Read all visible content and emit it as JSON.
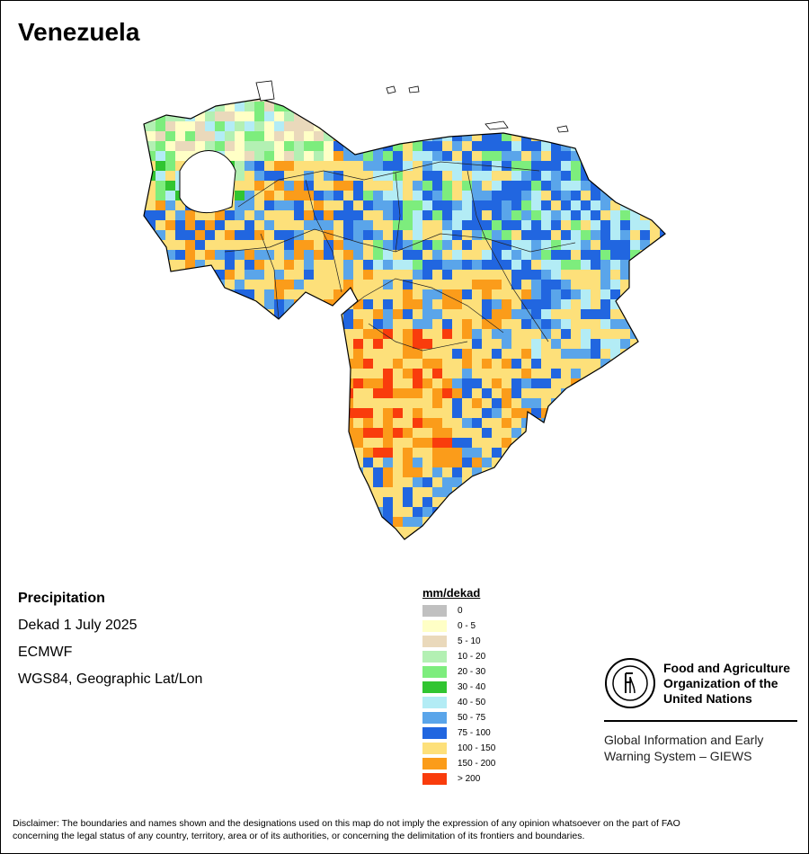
{
  "title": "Venezuela",
  "info": {
    "variable": "Precipitation",
    "period": "Dekad 1 July 2025",
    "source": "ECMWF",
    "projection": "WGS84, Geographic Lat/Lon"
  },
  "legend": {
    "title": "mm/dekad",
    "classes": [
      {
        "label": "0",
        "color": "#c0c0c0"
      },
      {
        "label": "0 - 5",
        "color": "#ffffc6"
      },
      {
        "label": "5 - 10",
        "color": "#ead9bb"
      },
      {
        "label": "10 - 20",
        "color": "#b3f0b3"
      },
      {
        "label": "20 - 30",
        "color": "#7ded7d"
      },
      {
        "label": "30 - 40",
        "color": "#31c531"
      },
      {
        "label": "40 - 50",
        "color": "#b3ecf5"
      },
      {
        "label": "50 - 75",
        "color": "#5aa5ea"
      },
      {
        "label": "75 - 100",
        "color": "#2166e0"
      },
      {
        "label": "100 - 150",
        "color": "#fde07a"
      },
      {
        "label": "150 - 200",
        "color": "#fb9c1a"
      },
      {
        "label": "> 200",
        "color": "#f93c0c"
      }
    ]
  },
  "org": {
    "name_line1": "Food and Agriculture",
    "name_line2": "Organization of the",
    "name_line3": "United Nations",
    "system_line1": "Global Information and Early",
    "system_line2": "Warning System – GIEWS"
  },
  "disclaimer_line1": "Disclaimer: The boundaries and names shown and the designations used on this map do not imply the expression of any opinion whatsoever on the part of FAO",
  "disclaimer_line2": "concerning the legal status of any country, territory, area or of its authorities, or concerning the delimitation of its frontiers and boundaries."
}
